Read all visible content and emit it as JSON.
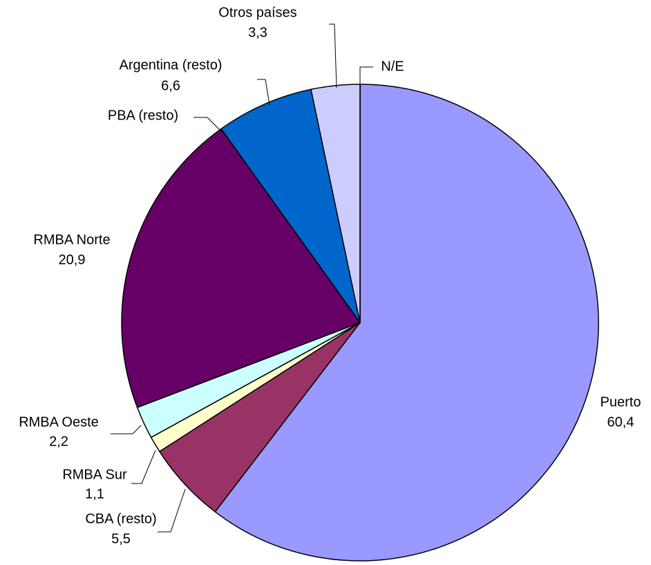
{
  "chart_data": {
    "type": "pie",
    "categories": [
      "Puerto",
      "CBA (resto)",
      "RMBA Sur",
      "RMBA Oeste",
      "RMBA Norte",
      "PBA (resto)",
      "Argentina  (resto)",
      "Otros países",
      "N/E"
    ],
    "values": [
      60.4,
      5.5,
      1.1,
      2.2,
      20.9,
      0,
      6.6,
      3.3,
      0
    ],
    "value_labels": [
      "60,4",
      "5,5",
      "1,1",
      "2,2",
      "20,9",
      null,
      "6,6",
      "3,3",
      null
    ],
    "colors": [
      "#9999ff",
      "#993366",
      "#ffffcc",
      "#ccffff",
      "#660066",
      "#ff8080",
      "#0066cc",
      "#ccccff",
      "#000080"
    ]
  }
}
